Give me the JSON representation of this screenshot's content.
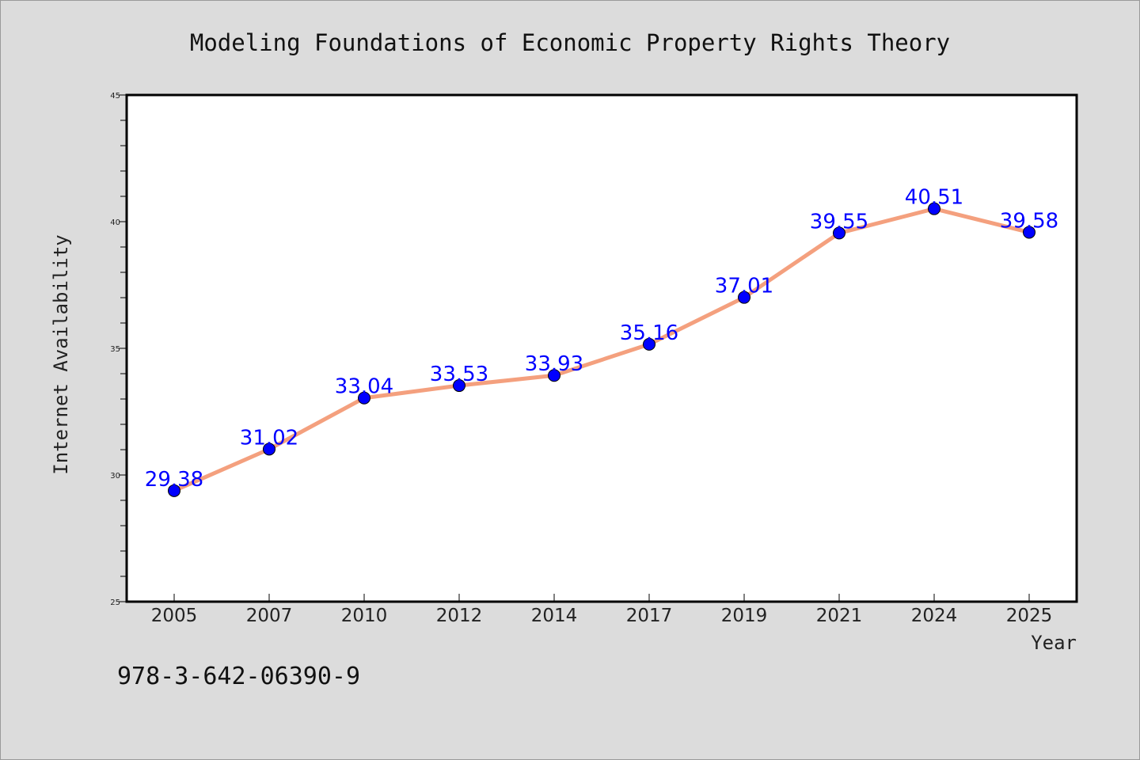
{
  "chart_data": {
    "type": "line",
    "title": "Modeling Foundations of Economic Property Rights Theory",
    "xlabel": "Year",
    "ylabel": "Internet Availability",
    "categories": [
      "2005",
      "2007",
      "2010",
      "2012",
      "2014",
      "2017",
      "2019",
      "2021",
      "2024",
      "2025"
    ],
    "values": [
      29.38,
      31.02,
      33.04,
      33.53,
      33.93,
      35.16,
      37.01,
      39.55,
      40.51,
      39.58
    ],
    "data_labels": [
      "29.38",
      "31.02",
      "33.04",
      "33.53",
      "33.93",
      "35.16",
      "37.01",
      "39.55",
      "40.51",
      "39.58"
    ],
    "ylim": [
      25,
      45
    ],
    "yticks": [
      "25",
      "30",
      "35",
      "40",
      "45"
    ],
    "grid": false,
    "colors": {
      "line": "#f4a07e",
      "marker": "#0000ff",
      "data_label": "#0000ff",
      "plot_background": "#ffffff",
      "figure_background": "#dcdcdc"
    }
  },
  "footer": {
    "isbn": "978-3-642-06390-9"
  }
}
